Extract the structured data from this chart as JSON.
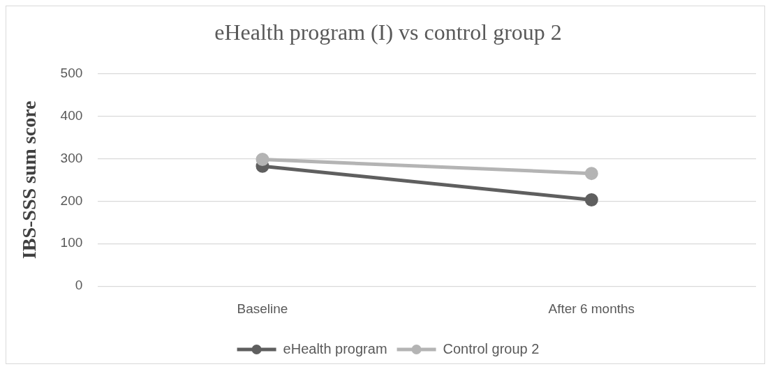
{
  "chart_data": {
    "type": "line",
    "title": "eHealth program (I) vs control group 2",
    "ylabel": "IBS-SSS sum score",
    "categories": [
      "Baseline",
      "After 6 months"
    ],
    "series": [
      {
        "name": "eHealth program",
        "color": "#5f5f5f",
        "values": [
          282,
          203
        ]
      },
      {
        "name": "Control group 2",
        "color": "#b4b4b4",
        "values": [
          298,
          265
        ]
      }
    ],
    "ylim": [
      0,
      500
    ],
    "yticks": [
      0,
      100,
      200,
      300,
      400,
      500
    ],
    "grid": "y",
    "legend": "bottom",
    "marker": "circle",
    "line_style": "solid"
  }
}
